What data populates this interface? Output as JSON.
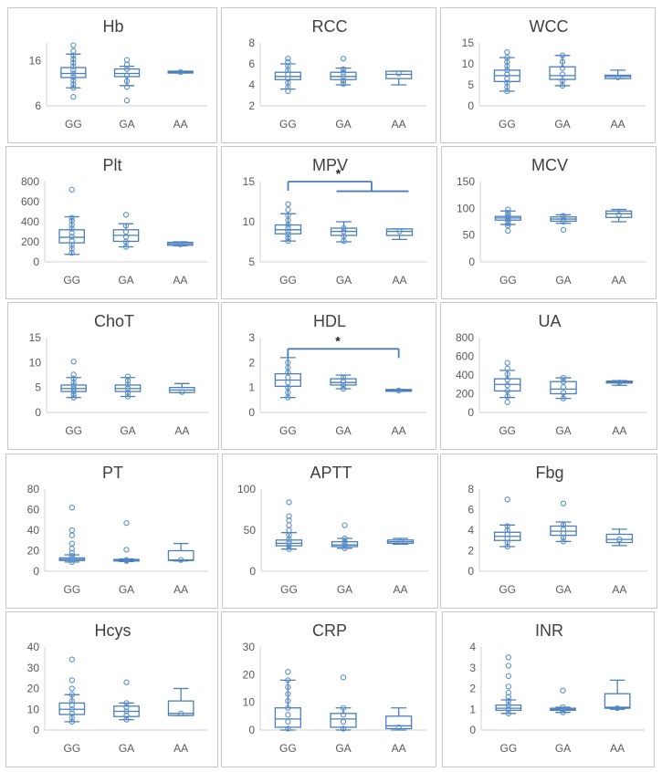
{
  "chart_data": [
    {
      "type": "boxplot",
      "title": "Hb",
      "ylim": [
        6,
        20
      ],
      "yticks": [
        6,
        16
      ],
      "categories": [
        "GG",
        "GA",
        "AA"
      ],
      "boxes": [
        {
          "min": 10,
          "q1": 12.3,
          "median": 13.2,
          "q3": 14.5,
          "max": 17.5
        },
        {
          "min": 10.5,
          "q1": 12.5,
          "median": 13.2,
          "q3": 14.2,
          "max": 14.8
        },
        {
          "min": 13.3,
          "q1": 13.3,
          "median": 13.5,
          "q3": 13.7,
          "max": 13.7
        }
      ],
      "points": [
        [
          8,
          10,
          10.8,
          11.6,
          12.4,
          13.2,
          14,
          14.8,
          15.6,
          16.4,
          17.2,
          18.2,
          19.5
        ],
        [
          7.2,
          10.2,
          11.5,
          12.8,
          14.2,
          15.2,
          16.2
        ],
        [
          13.5
        ]
      ],
      "annotation": null
    },
    {
      "type": "boxplot",
      "title": "RCC",
      "ylim": [
        2,
        8
      ],
      "yticks": [
        2,
        4,
        6,
        8
      ],
      "categories": [
        "GG",
        "GA",
        "AA"
      ],
      "boxes": [
        {
          "min": 3.6,
          "q1": 4.5,
          "median": 4.8,
          "q3": 5.2,
          "max": 6
        },
        {
          "min": 4,
          "q1": 4.5,
          "median": 4.8,
          "q3": 5.2,
          "max": 5.6
        },
        {
          "min": 4,
          "q1": 4.6,
          "median": 5,
          "q3": 5.3,
          "max": 5.3
        }
      ],
      "points": [
        [
          3.4,
          3.8,
          4.2,
          4.6,
          5,
          5.4,
          5.8,
          6.2,
          6.5
        ],
        [
          4.1,
          4.4,
          4.8,
          5.2,
          5.5,
          6.5
        ],
        [
          5.1
        ]
      ],
      "annotation": null
    },
    {
      "type": "boxplot",
      "title": "WCC",
      "ylim": [
        0,
        15
      ],
      "yticks": [
        0,
        5,
        10,
        15
      ],
      "categories": [
        "GG",
        "GA",
        "AA"
      ],
      "boxes": [
        {
          "min": 3.5,
          "q1": 5.8,
          "median": 7.2,
          "q3": 8.5,
          "max": 11.5
        },
        {
          "min": 4.8,
          "q1": 6.3,
          "median": 7.2,
          "q3": 9.3,
          "max": 12
        },
        {
          "min": 6.5,
          "q1": 6.5,
          "median": 7,
          "q3": 7.3,
          "max": 8.5
        }
      ],
      "points": [
        [
          3.5,
          4.5,
          5.5,
          6.5,
          7.5,
          8.5,
          9.5,
          10.5,
          11.5,
          12.8
        ],
        [
          4.8,
          6,
          7.5,
          9,
          10.5,
          12
        ],
        [
          6.8
        ]
      ],
      "annotation": null
    },
    {
      "type": "boxplot",
      "title": "Plt",
      "ylim": [
        0,
        800
      ],
      "yticks": [
        0,
        200,
        400,
        600,
        800
      ],
      "categories": [
        "GG",
        "GA",
        "AA"
      ],
      "boxes": [
        {
          "min": 75,
          "q1": 190,
          "median": 245,
          "q3": 320,
          "max": 450
        },
        {
          "min": 150,
          "q1": 205,
          "median": 265,
          "q3": 320,
          "max": 380
        },
        {
          "min": 160,
          "q1": 165,
          "median": 180,
          "q3": 195,
          "max": 200
        }
      ],
      "points": [
        [
          90,
          130,
          170,
          210,
          250,
          290,
          330,
          370,
          410,
          440,
          720
        ],
        [
          150,
          200,
          250,
          300,
          360,
          470
        ],
        [
          175
        ]
      ],
      "annotation": null
    },
    {
      "type": "boxplot",
      "title": "MPV",
      "ylim": [
        5,
        15
      ],
      "yticks": [
        5,
        10,
        15
      ],
      "categories": [
        "GG",
        "GA",
        "AA"
      ],
      "boxes": [
        {
          "min": 7.6,
          "q1": 8.5,
          "median": 9,
          "q3": 9.6,
          "max": 11
        },
        {
          "min": 7.5,
          "q1": 8.3,
          "median": 8.8,
          "q3": 9.2,
          "max": 10
        },
        {
          "min": 7.8,
          "q1": 8.3,
          "median": 8.8,
          "q3": 9.1,
          "max": 9.1
        }
      ],
      "points": [
        [
          7.6,
          8,
          8.4,
          8.8,
          9.2,
          9.6,
          10.2,
          10.8,
          11.5,
          12.2
        ],
        [
          7.6,
          8.2,
          8.8,
          9.2
        ],
        [
          8.8
        ]
      ],
      "annotation": {
        "text": "*",
        "from": 0,
        "to": [
          1,
          2
        ],
        "y": 15,
        "inner": 13.8
      }
    },
    {
      "type": "boxplot",
      "title": "MCV",
      "ylim": [
        0,
        150
      ],
      "yticks": [
        0,
        50,
        100,
        150
      ],
      "categories": [
        "GG",
        "GA",
        "AA"
      ],
      "boxes": [
        {
          "min": 70,
          "q1": 78,
          "median": 82,
          "q3": 85,
          "max": 95
        },
        {
          "min": 72,
          "q1": 76,
          "median": 80,
          "q3": 84,
          "max": 88
        },
        {
          "min": 75,
          "q1": 83,
          "median": 90,
          "q3": 95,
          "max": 98
        }
      ],
      "points": [
        [
          58,
          68,
          72,
          76,
          80,
          84,
          88,
          92,
          98
        ],
        [
          60,
          75,
          80,
          86
        ],
        [
          88
        ]
      ],
      "annotation": null
    },
    {
      "type": "boxplot",
      "title": "ChoT",
      "ylim": [
        0,
        15
      ],
      "yticks": [
        0,
        5,
        10,
        15
      ],
      "categories": [
        "GG",
        "GA",
        "AA"
      ],
      "boxes": [
        {
          "min": 3,
          "q1": 4.2,
          "median": 4.8,
          "q3": 5.5,
          "max": 7
        },
        {
          "min": 3.2,
          "q1": 4.2,
          "median": 4.8,
          "q3": 5.5,
          "max": 7
        },
        {
          "min": 4,
          "q1": 4,
          "median": 4.5,
          "q3": 5,
          "max": 5.8
        }
      ],
      "points": [
        [
          3,
          3.6,
          4.2,
          4.8,
          5.4,
          6,
          6.8,
          7.6,
          10.2
        ],
        [
          3.2,
          4,
          4.8,
          5.6,
          6.4,
          7.2
        ],
        [
          4.1
        ]
      ],
      "annotation": null
    },
    {
      "type": "boxplot",
      "title": "HDL",
      "ylim": [
        0,
        3
      ],
      "yticks": [
        0,
        1,
        2,
        3
      ],
      "categories": [
        "GG",
        "GA",
        "AA"
      ],
      "boxes": [
        {
          "min": 0.6,
          "q1": 1.05,
          "median": 1.3,
          "q3": 1.55,
          "max": 2.2
        },
        {
          "min": 0.95,
          "q1": 1.1,
          "median": 1.2,
          "q3": 1.35,
          "max": 1.5
        },
        {
          "min": 0.85,
          "q1": 0.85,
          "median": 0.88,
          "q3": 0.92,
          "max": 0.92
        }
      ],
      "points": [
        [
          0.6,
          0.8,
          1,
          1.2,
          1.4,
          1.6,
          1.8,
          2
        ],
        [
          0.95,
          1.1,
          1.25,
          1.4
        ],
        [
          0.88
        ]
      ],
      "annotation": {
        "text": "*",
        "from": 0,
        "to": [
          2
        ],
        "y": 2.55,
        "inner": null
      }
    },
    {
      "type": "boxplot",
      "title": "UA",
      "ylim": [
        0,
        800
      ],
      "yticks": [
        0,
        200,
        400,
        600,
        800
      ],
      "categories": [
        "GG",
        "GA",
        "AA"
      ],
      "boxes": [
        {
          "min": 160,
          "q1": 230,
          "median": 300,
          "q3": 360,
          "max": 450
        },
        {
          "min": 150,
          "q1": 200,
          "median": 250,
          "q3": 330,
          "max": 370
        },
        {
          "min": 290,
          "q1": 315,
          "median": 325,
          "q3": 335,
          "max": 340
        }
      ],
      "points": [
        [
          110,
          170,
          230,
          290,
          350,
          410,
          470,
          530
        ],
        [
          150,
          210,
          270,
          330,
          370
        ],
        [
          320
        ]
      ],
      "annotation": null
    },
    {
      "type": "boxplot",
      "title": "PT",
      "ylim": [
        0,
        80
      ],
      "yticks": [
        0,
        20,
        40,
        60,
        80
      ],
      "categories": [
        "GG",
        "GA",
        "AA"
      ],
      "boxes": [
        {
          "min": 9,
          "q1": 10.5,
          "median": 11.5,
          "q3": 13,
          "max": 16
        },
        {
          "min": 9.5,
          "q1": 10,
          "median": 10.8,
          "q3": 11.5,
          "max": 12
        },
        {
          "min": 10,
          "q1": 10.5,
          "median": 11,
          "q3": 20,
          "max": 27
        }
      ],
      "points": [
        [
          9,
          11,
          13,
          15,
          18,
          22,
          27,
          35,
          40,
          62
        ],
        [
          10,
          11,
          21,
          47
        ],
        [
          11
        ]
      ],
      "annotation": null
    },
    {
      "type": "boxplot",
      "title": "APTT",
      "ylim": [
        0,
        100
      ],
      "yticks": [
        0,
        50,
        100
      ],
      "categories": [
        "GG",
        "GA",
        "AA"
      ],
      "boxes": [
        {
          "min": 27,
          "q1": 31,
          "median": 34,
          "q3": 38,
          "max": 47
        },
        {
          "min": 28,
          "q1": 30,
          "median": 32,
          "q3": 36,
          "max": 40
        },
        {
          "min": 33,
          "q1": 34,
          "median": 36,
          "q3": 38,
          "max": 40
        }
      ],
      "points": [
        [
          27,
          31,
          35,
          39,
          44,
          50,
          56,
          62,
          67,
          84
        ],
        [
          28,
          32,
          36,
          40,
          56
        ],
        [
          36
        ]
      ],
      "annotation": null
    },
    {
      "type": "boxplot",
      "title": "Fbg",
      "ylim": [
        0,
        8
      ],
      "yticks": [
        0,
        2,
        4,
        6,
        8
      ],
      "categories": [
        "GG",
        "GA",
        "AA"
      ],
      "boxes": [
        {
          "min": 2.4,
          "q1": 3,
          "median": 3.4,
          "q3": 3.8,
          "max": 4.5
        },
        {
          "min": 2.9,
          "q1": 3.5,
          "median": 3.9,
          "q3": 4.4,
          "max": 4.8
        },
        {
          "min": 2.5,
          "q1": 2.8,
          "median": 3.1,
          "q3": 3.6,
          "max": 4.1
        }
      ],
      "points": [
        [
          2.4,
          2.8,
          3.2,
          3.6,
          4,
          4.4,
          7
        ],
        [
          2.9,
          3.3,
          3.7,
          4.1,
          4.5,
          6.6
        ],
        [
          3.1
        ]
      ],
      "annotation": null
    },
    {
      "type": "boxplot",
      "title": "Hcys",
      "ylim": [
        0,
        40
      ],
      "yticks": [
        0,
        10,
        20,
        30,
        40
      ],
      "categories": [
        "GG",
        "GA",
        "AA"
      ],
      "boxes": [
        {
          "min": 4,
          "q1": 7.5,
          "median": 10,
          "q3": 13,
          "max": 17
        },
        {
          "min": 5,
          "q1": 6.5,
          "median": 9,
          "q3": 11.5,
          "max": 13
        },
        {
          "min": 7,
          "q1": 7,
          "median": 8,
          "q3": 14,
          "max": 20
        }
      ],
      "points": [
        [
          4,
          6,
          8,
          10,
          12,
          14,
          17,
          20,
          24,
          34
        ],
        [
          5,
          7,
          9,
          11,
          13,
          23
        ],
        [
          8
        ]
      ],
      "annotation": null
    },
    {
      "type": "boxplot",
      "title": "CRP",
      "ylim": [
        0,
        30
      ],
      "yticks": [
        0,
        10,
        20,
        30
      ],
      "categories": [
        "GG",
        "GA",
        "AA"
      ],
      "boxes": [
        {
          "min": 0,
          "q1": 1,
          "median": 4,
          "q3": 8,
          "max": 18
        },
        {
          "min": 0,
          "q1": 1,
          "median": 4,
          "q3": 6,
          "max": 8
        },
        {
          "min": 0,
          "q1": 0.5,
          "median": 1.5,
          "q3": 5,
          "max": 8
        }
      ],
      "points": [
        [
          0.5,
          3,
          5.5,
          8,
          10.5,
          13,
          15.5,
          18,
          21
        ],
        [
          0.5,
          3,
          5.5,
          8,
          19
        ],
        [
          1
        ]
      ],
      "annotation": null
    },
    {
      "type": "boxplot",
      "title": "INR",
      "ylim": [
        0,
        4
      ],
      "yticks": [
        0,
        1,
        2,
        3,
        4
      ],
      "categories": [
        "GG",
        "GA",
        "AA"
      ],
      "boxes": [
        {
          "min": 0.8,
          "q1": 0.95,
          "median": 1.05,
          "q3": 1.2,
          "max": 1.45
        },
        {
          "min": 0.85,
          "q1": 0.95,
          "median": 1.0,
          "q3": 1.05,
          "max": 1.1
        },
        {
          "min": 1.0,
          "q1": 1.05,
          "median": 1.1,
          "q3": 1.75,
          "max": 2.4
        }
      ],
      "points": [
        [
          0.8,
          1,
          1.2,
          1.4,
          1.6,
          1.8,
          2.1,
          2.6,
          3.1,
          3.5
        ],
        [
          0.85,
          1,
          1.1,
          1.9
        ],
        [
          1.05
        ]
      ],
      "annotation": null
    }
  ]
}
